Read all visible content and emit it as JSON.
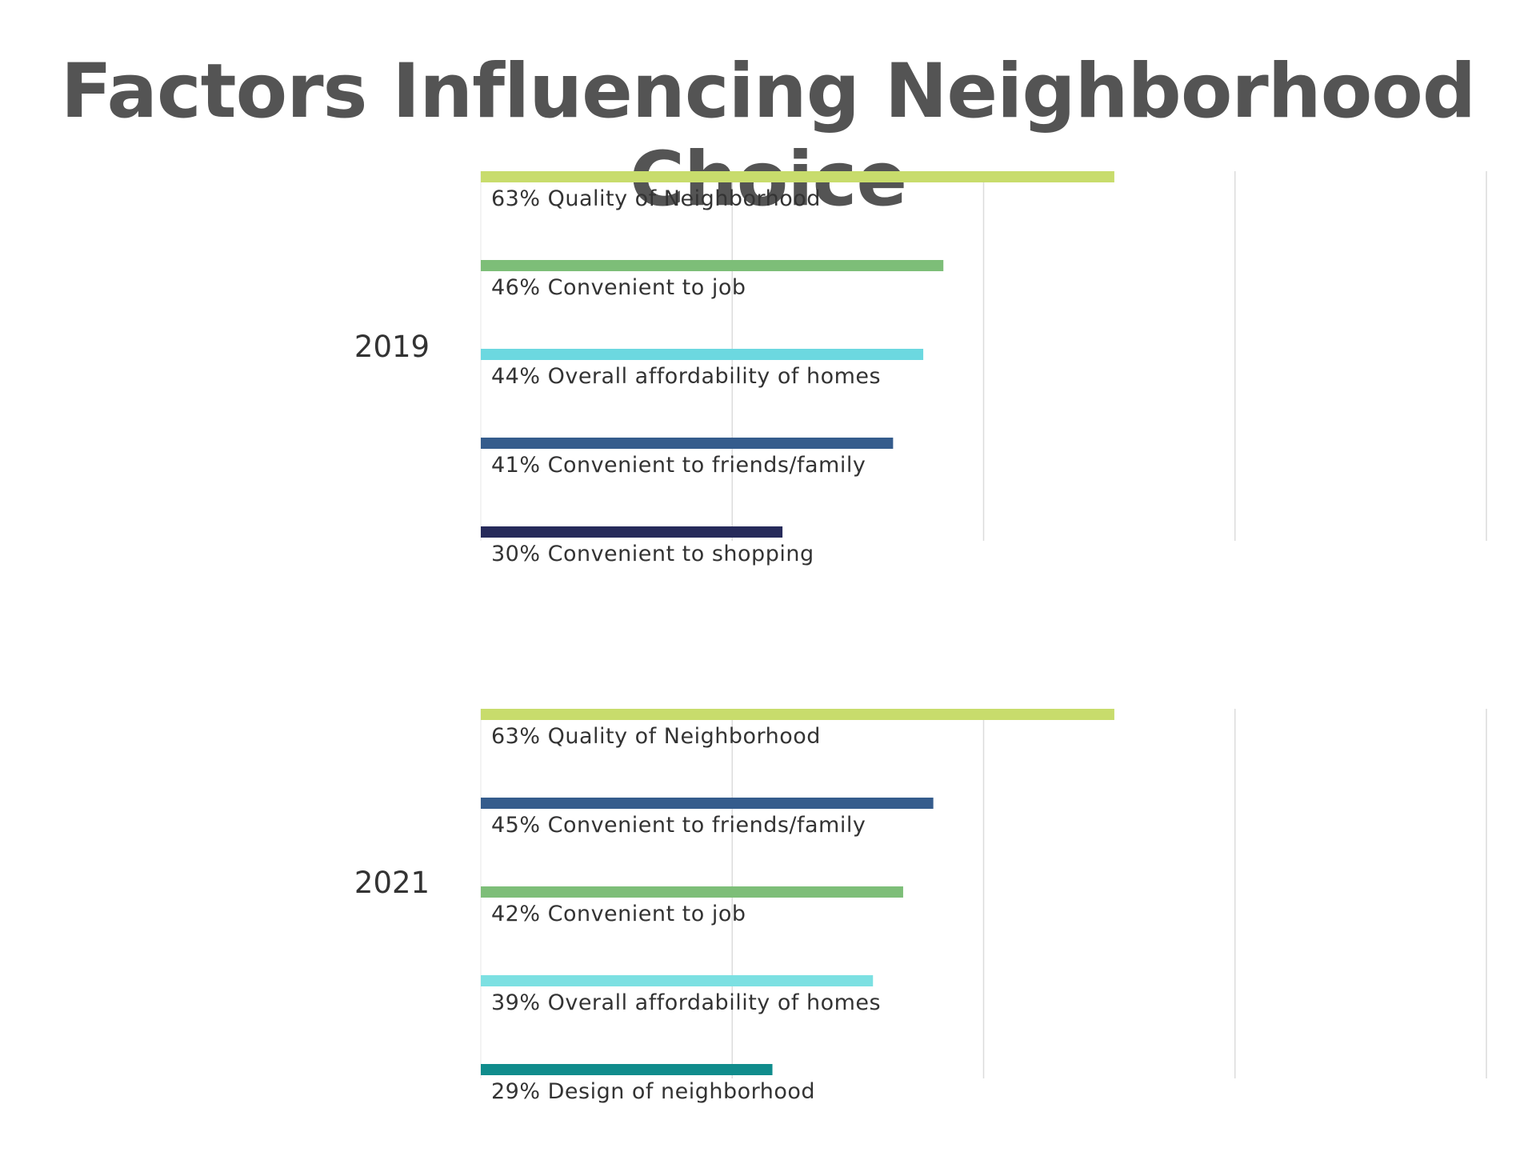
{
  "title": "Factors Influencing Neighborhood Choice",
  "chart_data": [
    {
      "type": "bar",
      "orientation": "horizontal",
      "group_label": "2019",
      "xlim": [
        0,
        100
      ],
      "grid": true,
      "bars": [
        {
          "value": 63,
          "label": "63% Quality of Neighborhood",
          "color": "#c8dc6c"
        },
        {
          "value": 46,
          "label": "46% Convenient to job",
          "color": "#7dbe78"
        },
        {
          "value": 44,
          "label": "44% Overall affordability of homes",
          "color": "#6cd8e0"
        },
        {
          "value": 41,
          "label": "41% Convenient to friends/family",
          "color": "#355c8c"
        },
        {
          "value": 30,
          "label": "30% Convenient to shopping",
          "color": "#262a5a"
        }
      ]
    },
    {
      "type": "bar",
      "orientation": "horizontal",
      "group_label": "2021",
      "xlim": [
        0,
        100
      ],
      "grid": true,
      "bars": [
        {
          "value": 63,
          "label": "63% Quality of Neighborhood",
          "color": "#c8dc6c"
        },
        {
          "value": 45,
          "label": "45% Convenient to friends/family",
          "color": "#355c8c"
        },
        {
          "value": 42,
          "label": "42% Convenient to job",
          "color": "#7dbe78"
        },
        {
          "value": 39,
          "label": "39% Overall affordability of homes",
          "color": "#7ce0e2"
        },
        {
          "value": 29,
          "label": "29% Design of neighborhood",
          "color": "#108c8c"
        }
      ]
    }
  ]
}
